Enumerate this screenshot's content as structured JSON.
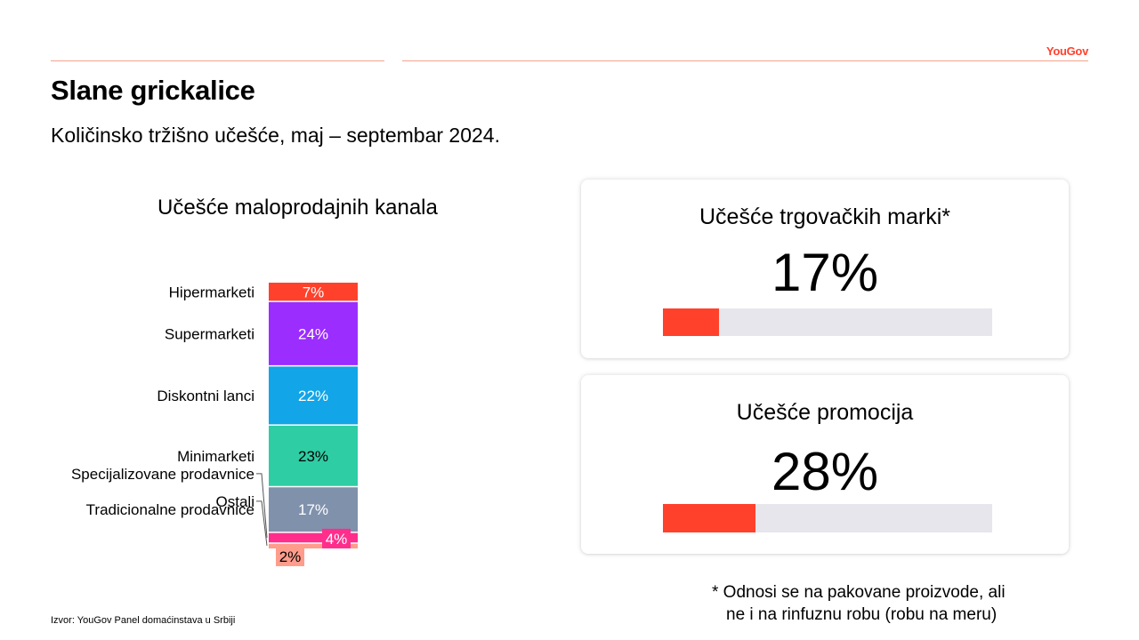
{
  "brand": {
    "logo_text": "YouGov",
    "accent": "#ff412c"
  },
  "title": "Slane grickalice",
  "subtitle": "Količinsko tržišno učešće, maj – septembar 2024.",
  "chart_data": {
    "type": "bar",
    "stacked": true,
    "title": "Učešće maloprodajnih kanala",
    "xlabel": "",
    "ylabel": "",
    "ylim": [
      0,
      100
    ],
    "unit": "%",
    "categories": [
      "Hipermarketi",
      "Supermarketi",
      "Diskontni lanci",
      "Minimarketi",
      "Tradicionalne prodavnice",
      "Specijalizovane prodavnice",
      "Ostali"
    ],
    "values": [
      7,
      24,
      22,
      23,
      17,
      4,
      2
    ],
    "labels": [
      "7%",
      "24%",
      "22%",
      "23%",
      "17%",
      "4%",
      "2%"
    ],
    "colors": [
      "#ff412c",
      "#9b2dff",
      "#12a5e8",
      "#2ecda4",
      "#8091ac",
      "#ff2e8c",
      "#ff9c8c"
    ],
    "label_colors": [
      "#ffffff",
      "#ffffff",
      "#ffffff",
      "#000000",
      "#ffffff",
      "#ffffff",
      "#000000"
    ]
  },
  "cards": [
    {
      "title": "Učešće trgovačkih marki*",
      "value_label": "17%",
      "value": 17
    },
    {
      "title": "Učešće promocija",
      "value_label": "28%",
      "value": 28
    }
  ],
  "footnote": {
    "line1": "* Odnosi se na pakovane proizvode, ali",
    "line2": "ne i na rinfuznu robu (robu na meru)"
  },
  "source": "Izvor: YouGov Panel domaćinstava u Srbiji"
}
